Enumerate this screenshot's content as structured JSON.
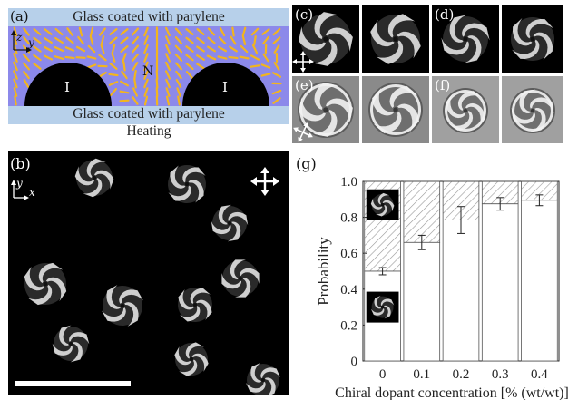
{
  "figure": {
    "panel_a": {
      "label": "(a)",
      "top_band": "Glass coated with parylene",
      "bottom_band": "Glass coated with parylene",
      "below_text": "Heating",
      "n_label": "N",
      "i_label_left": "I",
      "i_label_right": "I",
      "axis_z": "z",
      "axis_y": "y",
      "colors": {
        "band": "#b7d0ea",
        "lc": "#8c89ea",
        "director": "#f2b51e",
        "island": "#000000"
      }
    },
    "panel_b": {
      "label": "(b)",
      "axis_y": "y",
      "axis_x": "x"
    },
    "panel_c": {
      "label": "(c)"
    },
    "panel_d": {
      "label": "(d)"
    },
    "panel_e": {
      "label": "(e)"
    },
    "panel_f": {
      "label": "(f)"
    },
    "panel_g": {
      "label": "(g)"
    }
  },
  "chart_data": {
    "type": "bar",
    "xlabel": "Chiral dopant concentration [% (wt/wt)]",
    "ylabel": "Probability",
    "categories": [
      "0",
      "0.1",
      "0.2",
      "0.3",
      "0.4"
    ],
    "ylim": [
      0,
      1.0
    ],
    "yticks": [
      "0",
      "0.2",
      "0.4",
      "0.6",
      "0.8",
      "1.0"
    ],
    "series": [
      {
        "values": [
          0.5,
          0.66,
          0.785,
          0.875,
          0.895
        ],
        "errors": [
          0.02,
          0.04,
          0.075,
          0.035,
          0.03
        ]
      }
    ],
    "grid": false,
    "legend": "none"
  }
}
